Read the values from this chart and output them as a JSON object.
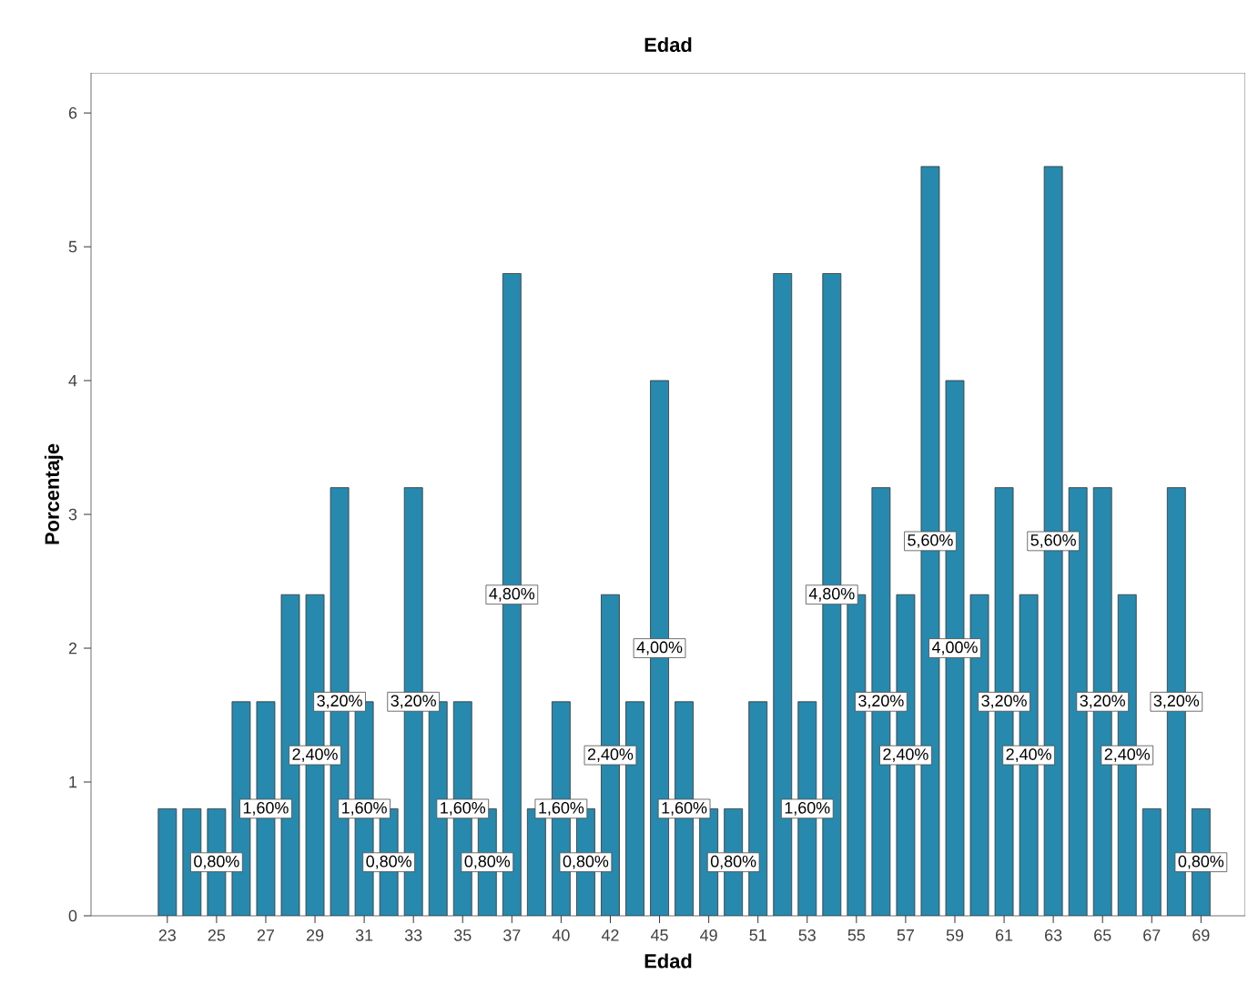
{
  "chart_data": {
    "type": "bar",
    "title": "Edad",
    "xlabel": "Edad",
    "ylabel": "Porcentaje",
    "color": "#2689ad",
    "categories": [
      "23",
      null,
      "25",
      null,
      "27",
      null,
      "29",
      null,
      "31",
      null,
      "33",
      null,
      "35",
      null,
      "37",
      null,
      "40",
      null,
      "42",
      null,
      "45",
      null,
      "49",
      null,
      "51",
      null,
      "53",
      null,
      "55",
      null,
      "57",
      null,
      "59",
      null,
      "61",
      null,
      "63",
      null,
      "65",
      null,
      "67",
      null,
      "69"
    ],
    "values": [
      0.8,
      0.8,
      0.8,
      1.6,
      1.6,
      2.4,
      2.4,
      3.2,
      1.6,
      0.8,
      3.2,
      1.6,
      1.6,
      0.8,
      4.8,
      0.8,
      1.6,
      0.8,
      2.4,
      1.6,
      4.0,
      1.6,
      0.8,
      0.8,
      1.6,
      4.8,
      1.6,
      4.8,
      2.4,
      3.2,
      2.4,
      5.6,
      4.0,
      2.4,
      3.2,
      2.4,
      5.6,
      3.2,
      3.2,
      2.4,
      0.8,
      3.2,
      0.8
    ],
    "value_labels": [
      null,
      null,
      "0,80%",
      null,
      "1,60%",
      null,
      "2,40%",
      "3,20%",
      "1,60%",
      "0,80%",
      "3,20%",
      null,
      "1,60%",
      "0,80%",
      "4,80%",
      null,
      "1,60%",
      "0,80%",
      "2,40%",
      null,
      "4,00%",
      "1,60%",
      null,
      "0,80%",
      null,
      null,
      "1,60%",
      "4,80%",
      null,
      "3,20%",
      "2,40%",
      "5,60%",
      "4,00%",
      null,
      "3,20%",
      "2,40%",
      "5,60%",
      null,
      "3,20%",
      "2,40%",
      null,
      "3,20%",
      "0,80%"
    ],
    "ylim": [
      0,
      6.3
    ],
    "yticks": [
      0,
      1,
      2,
      3,
      4,
      5,
      6
    ],
    "grid": false
  }
}
